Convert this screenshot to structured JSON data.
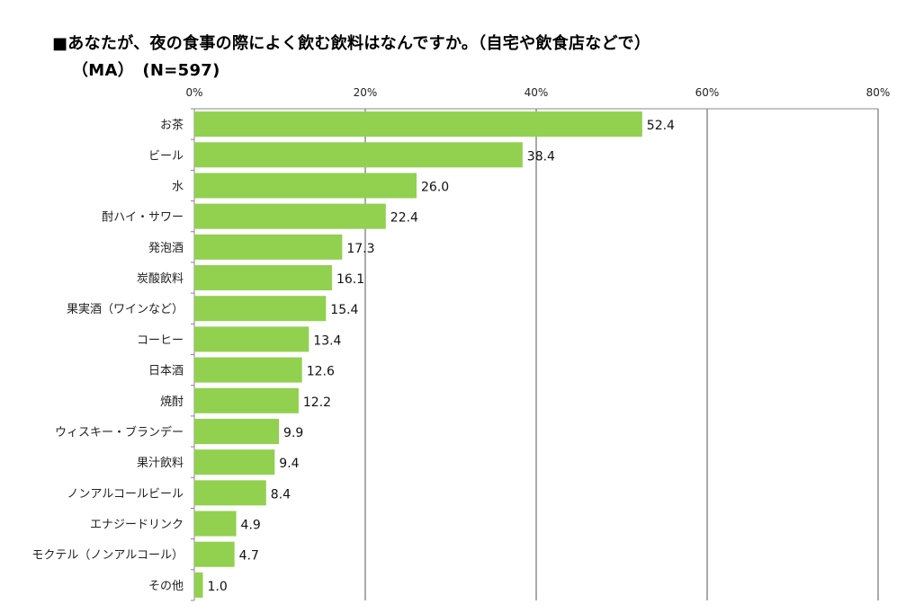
{
  "header": {
    "title_line1": "■あなたが、夜の食事の際によく飲む飲料はなんですか。（自宅や飲食店などで）",
    "title_line2": "（MA）　(N=597)"
  },
  "chart_data": {
    "type": "bar",
    "orientation": "horizontal",
    "categories": [
      "お茶",
      "ビール",
      "水",
      "酎ハイ・サワー",
      "発泡酒",
      "炭酸飲料",
      "果実酒（ワインなど）",
      "コーヒー",
      "日本酒",
      "焼酎",
      "ウィスキー・ブランデー",
      "果汁飲料",
      "ノンアルコールビール",
      "エナジードリンク",
      "モクテル（ノンアルコール）",
      "その他"
    ],
    "values": [
      52.4,
      38.4,
      26.0,
      22.4,
      17.3,
      16.1,
      15.4,
      13.4,
      12.6,
      12.2,
      9.9,
      9.4,
      8.4,
      4.9,
      4.7,
      1.0
    ],
    "value_labels": [
      "52.4",
      "38.4",
      "26.0",
      "22.4",
      "17.3",
      "16.1",
      "15.4",
      "13.4",
      "12.6",
      "12.2",
      "9.9",
      "9.4",
      "8.4",
      "4.9",
      "4.7",
      "1.0"
    ],
    "xticks": [
      "0%",
      "20%",
      "40%",
      "60%",
      "80%"
    ],
    "xlim": [
      0,
      80
    ],
    "xaxis_position": "top",
    "grid": true,
    "bar_color": "#92d050",
    "grid_color": "#555555"
  }
}
